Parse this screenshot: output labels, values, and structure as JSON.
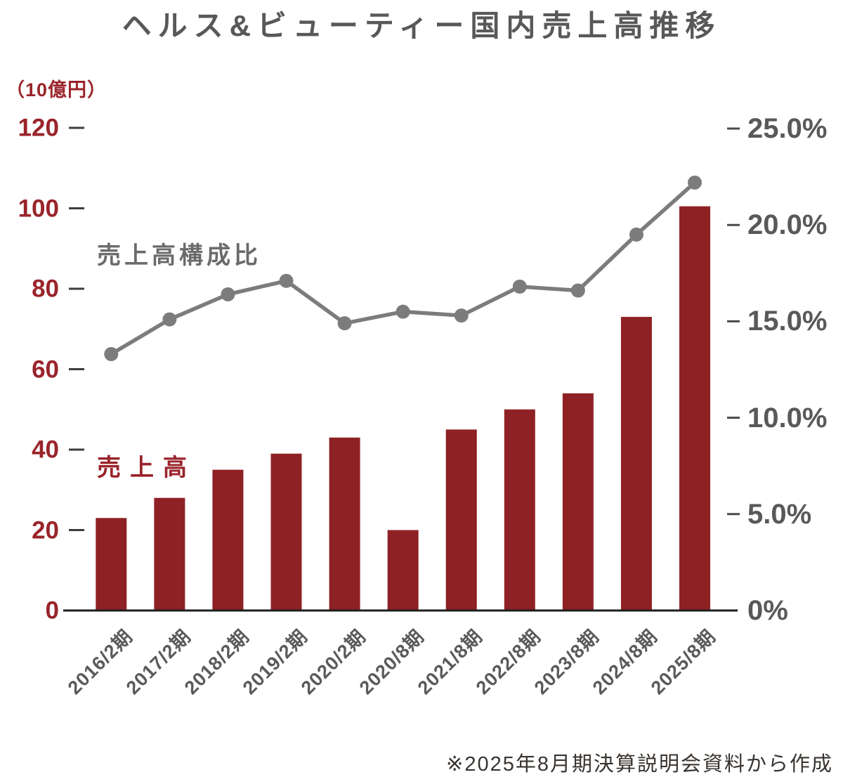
{
  "chart_data": {
    "type": "combo-bar-line",
    "title": "ヘルス&ビューティー国内売上高推移",
    "footnote": "※2025年8月期決算説明会資料から作成",
    "categories": [
      "2016/2期",
      "2017/2期",
      "2018/2期",
      "2019/2期",
      "2020/2期",
      "2020/8期",
      "2021/8期",
      "2022/8期",
      "2023/8期",
      "2024/8期",
      "2025/8期"
    ],
    "left_axis": {
      "unit_label": "（10億円）",
      "tick_values": [
        120,
        100,
        80,
        60,
        40,
        20,
        0
      ],
      "range": [
        0,
        120
      ],
      "text_color": "#9a242b"
    },
    "right_axis": {
      "tick_labels": [
        "25.0%",
        "20.0%",
        "15.0%",
        "10.0%",
        "5.0%",
        "0%"
      ],
      "tick_values": [
        25,
        20,
        15,
        10,
        5,
        0
      ],
      "range": [
        0,
        25
      ],
      "text_color": "#595959"
    },
    "series": [
      {
        "name": "売上高",
        "type": "bar",
        "axis": "left",
        "color": "#8e2124",
        "values": [
          23,
          28,
          35,
          39,
          43,
          20,
          45,
          50,
          54,
          73,
          100.5
        ]
      },
      {
        "name": "売上高構成比",
        "type": "line",
        "axis": "right",
        "color": "#7c7c7c",
        "values": [
          13.3,
          15.1,
          16.4,
          17.1,
          14.9,
          15.5,
          15.3,
          16.8,
          16.6,
          19.5,
          22.2
        ]
      }
    ],
    "legend_position": "inline-annotations",
    "grid": false,
    "colors": {
      "bar": "#8e2124",
      "line": "#7c7c7c",
      "axis_line": "#1e1e1e",
      "title_text": "#58585a",
      "category_text": "#5a5a5a",
      "footnote_text": "#393430"
    }
  }
}
